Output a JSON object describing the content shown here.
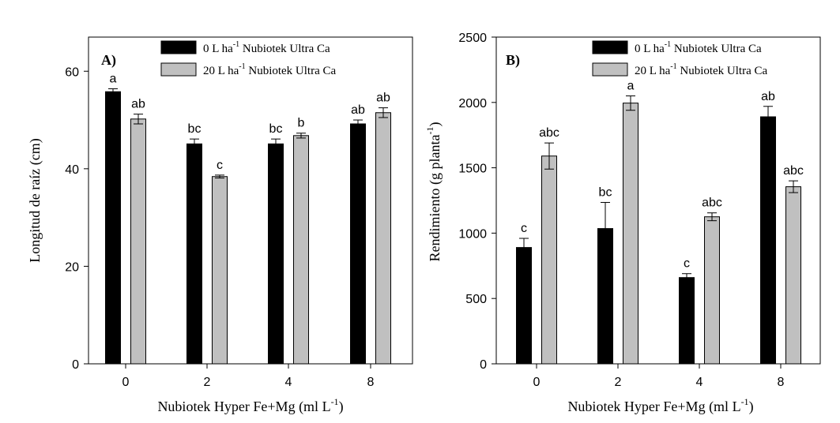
{
  "chart_data": [
    {
      "type": "bar",
      "panel_label": "A)",
      "ylabel": "Longitud de raíz (cm)",
      "xlabel": {
        "main": "Nubiotek Hyper Fe+Mg (ml L",
        "sup": "-1",
        "end": ")"
      },
      "categories": [
        "0",
        "2",
        "4",
        "8"
      ],
      "ylim": [
        0,
        67
      ],
      "yticks": [
        0,
        20,
        40,
        60
      ],
      "legend_position": "top-right",
      "series": [
        {
          "name_main": "0 L ha",
          "name_sup": "-1",
          "name_end": " Nubiotek Ultra Ca",
          "color": "#000000",
          "values": [
            55.8,
            45.1,
            45.1,
            49.2
          ],
          "errors": [
            0.6,
            1.0,
            1.0,
            0.8
          ],
          "labels": [
            "a",
            "bc",
            "bc",
            "ab"
          ]
        },
        {
          "name_main": "20 L ha",
          "name_sup": "-1",
          "name_end": " Nubiotek Ultra Ca",
          "color": "#c0c0c0",
          "values": [
            50.2,
            38.4,
            46.8,
            51.5
          ],
          "errors": [
            1.0,
            0.3,
            0.5,
            1.0
          ],
          "labels": [
            "ab",
            "c",
            "b",
            "ab"
          ]
        }
      ]
    },
    {
      "type": "bar",
      "panel_label": "B)",
      "ylabel": {
        "main": "Rendimiento (g planta",
        "sup": "-1",
        "end": ")"
      },
      "xlabel": {
        "main": "Nubiotek Hyper Fe+Mg (ml L",
        "sup": "-1",
        "end": ")"
      },
      "categories": [
        "0",
        "2",
        "4",
        "8"
      ],
      "ylim": [
        0,
        2500
      ],
      "yticks": [
        0,
        500,
        1000,
        1500,
        2000,
        2500
      ],
      "legend_position": "top-right",
      "series": [
        {
          "name_main": "0 L ha",
          "name_sup": "-1",
          "name_end": " Nubiotek Ultra Ca",
          "color": "#000000",
          "values": [
            890,
            1035,
            660,
            1890
          ],
          "errors": [
            70,
            200,
            30,
            80
          ],
          "labels": [
            "c",
            "bc",
            "c",
            "ab"
          ]
        },
        {
          "name_main": "20 L ha",
          "name_sup": "-1",
          "name_end": " Nubiotek Ultra Ca",
          "color": "#c0c0c0",
          "values": [
            1590,
            1995,
            1125,
            1355
          ],
          "errors": [
            100,
            55,
            30,
            45
          ],
          "labels": [
            "abc",
            "a",
            "abc",
            "abc"
          ]
        }
      ]
    }
  ]
}
